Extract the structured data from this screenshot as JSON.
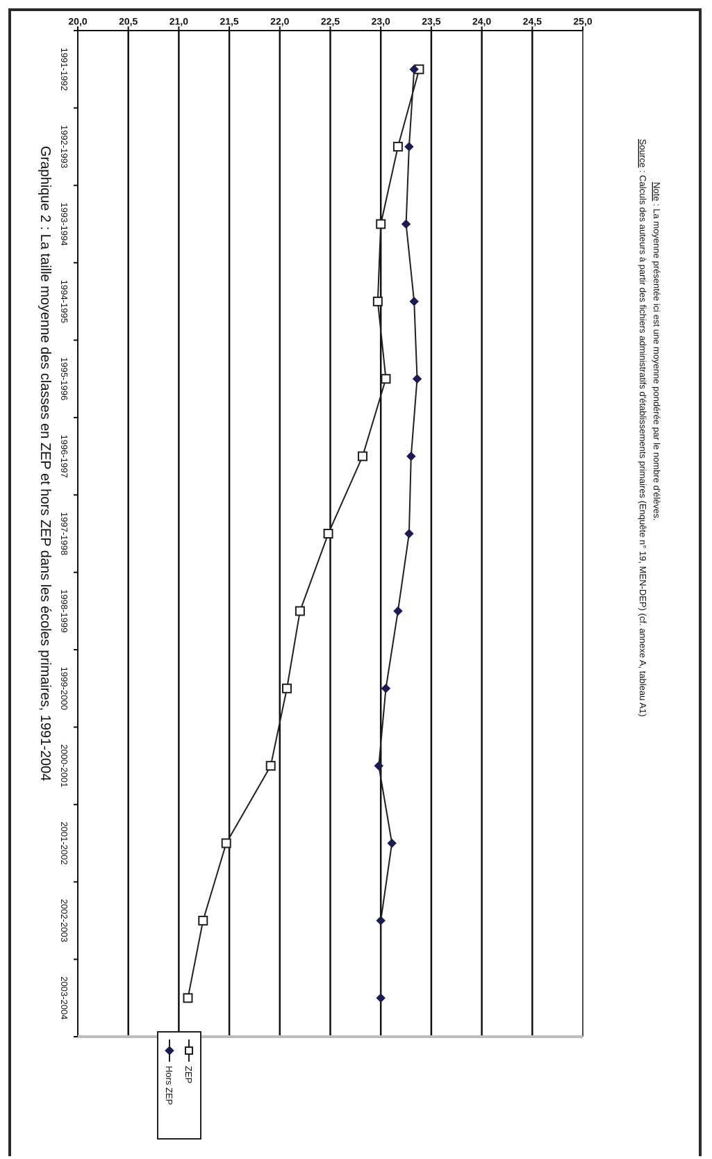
{
  "chart_data": {
    "type": "line",
    "title": "Graphique 2 : La taille moyenne des classes en ZEP et hors ZEP dans les écoles primaires, 1991-2004",
    "categories": [
      "1991-1992",
      "1992-1993",
      "1993-1994",
      "1994-1995",
      "1995-1996",
      "1996-1997",
      "1997-1998",
      "1998-1999",
      "1999-2000",
      "2000-2001",
      "2001-2002",
      "2002-2003",
      "2003-2004"
    ],
    "series": [
      {
        "name": "ZEP",
        "marker": "square-open",
        "values": [
          23.38,
          23.17,
          23.0,
          22.97,
          23.05,
          22.82,
          22.48,
          22.2,
          22.07,
          21.91,
          21.47,
          21.24,
          21.09
        ]
      },
      {
        "name": "Hors ZEP",
        "marker": "diamond-filled",
        "values": [
          23.33,
          23.28,
          23.25,
          23.33,
          23.36,
          23.3,
          23.28,
          23.17,
          23.05,
          22.98,
          23.11,
          23.0,
          23.0
        ]
      }
    ],
    "ylim": [
      20.0,
      25.0
    ],
    "yticks": [
      "25,0",
      "24,5",
      "24,0",
      "23,5",
      "23,0",
      "22,5",
      "22,0",
      "21,5",
      "21,0",
      "20,5",
      "20,0"
    ],
    "orientation": "rotated-90-clockwise",
    "grid": true,
    "legend": "top-right",
    "colors": {
      "line": "#1f1f1f",
      "zep_marker_fill": "#ffffff",
      "hors_zep_marker_fill": "#1a1a55",
      "grid": "#111111"
    }
  },
  "notes": {
    "source_label": "Source",
    "source_text": " : Calculs des auteurs à partir des fichiers administratifs d'établissements primaires (Enquête n° 19, MEN-DEP) (cf. annexe A, tableau A1)",
    "note_label": "Note",
    "note_text": " : La moyenne présentée ici est une moyenne pondérée par le nombre d'élèves."
  }
}
